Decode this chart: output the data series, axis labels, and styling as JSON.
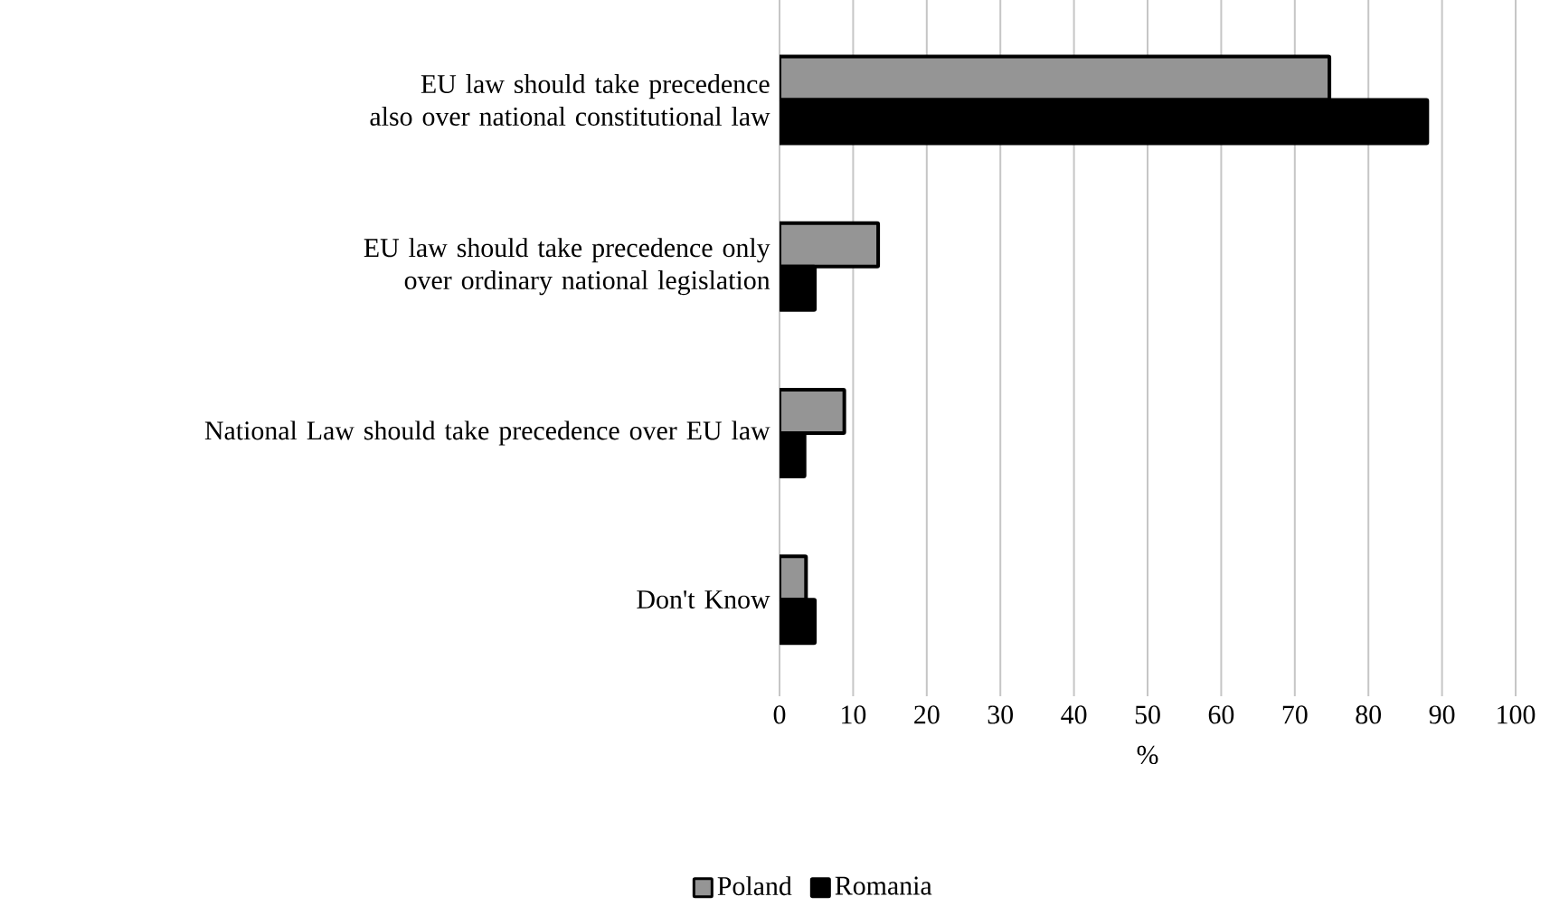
{
  "chart_data": {
    "type": "bar",
    "orientation": "horizontal",
    "categories": [
      "EU law should take precedence also over national constitutional law",
      "EU law should take precedence only over ordinary national legislation",
      "National Law should take precedence over EU law",
      "Don't Know"
    ],
    "series": [
      {
        "name": "Poland",
        "color": "#959595",
        "values": [
          74.7,
          13.4,
          8.8,
          3.6
        ]
      },
      {
        "name": "Romania",
        "color": "#000000",
        "values": [
          88.0,
          4.8,
          3.4,
          4.8
        ]
      }
    ],
    "xlabel": "%",
    "xlim": [
      0,
      100
    ],
    "xticks": [
      0,
      10,
      20,
      30,
      40,
      50,
      60,
      70,
      80,
      90,
      100
    ],
    "grid": "x",
    "legend": "bottom"
  }
}
